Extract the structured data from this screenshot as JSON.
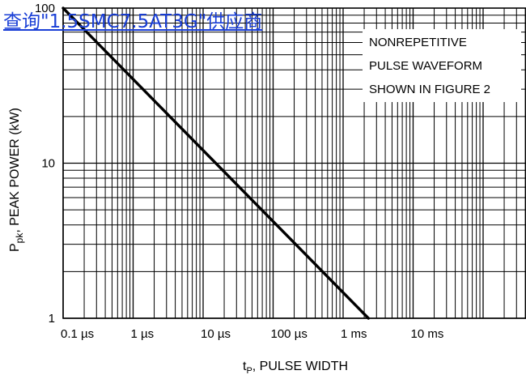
{
  "overlay_link": {
    "text": "查询\"1.5SMC7.5AT3G\"供应商",
    "color": "#1a3fd6"
  },
  "chart_data": {
    "type": "line",
    "x_scale": "log",
    "y_scale": "log",
    "xlim": [
      0.1,
      100000
    ],
    "ylim": [
      1,
      100
    ],
    "grid": true,
    "xlabel": {
      "main": "t",
      "sub": "P",
      "rest": ", PULSE WIDTH"
    },
    "ylabel": {
      "main": "P",
      "sub": "pk",
      "rest": ", PEAK POWER (kW)"
    },
    "x_tick_labels": [
      {
        "value": 0.1,
        "text": "0.1 µs"
      },
      {
        "value": 1,
        "text": "1 µs"
      },
      {
        "value": 10,
        "text": "10 µs"
      },
      {
        "value": 100,
        "text": "100 µs"
      },
      {
        "value": 1000,
        "text": "1 ms"
      },
      {
        "value": 10000,
        "text": "10 ms"
      }
    ],
    "y_tick_labels": [
      {
        "value": 1,
        "text": "1"
      },
      {
        "value": 10,
        "text": "10"
      },
      {
        "value": 100,
        "text": "100"
      }
    ],
    "annotation": [
      "NONREPETITIVE",
      "PULSE WAVEFORM",
      "SHOWN IN FIGURE 2"
    ],
    "series": [
      {
        "x_us": [
          0.1,
          2300
        ],
        "y_kw": [
          100,
          1
        ]
      }
    ]
  }
}
